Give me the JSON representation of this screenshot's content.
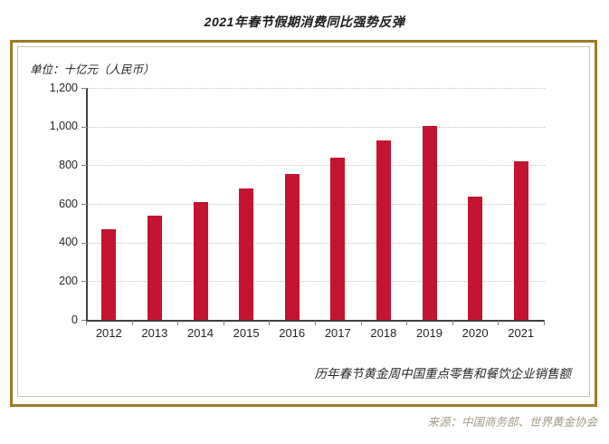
{
  "page": {
    "title": "2021年春节假期消费同比强势反弹",
    "unit_label": "单位：十亿元（人民币）",
    "caption": "历年春节黄金周中国重点零售和餐饮企业销售额",
    "source": "来源：中国商务部、世界黄金协会"
  },
  "colors": {
    "bar": "#c31430",
    "frame_gold": "#9c7b2a",
    "frame_inner": "#ccc3ad",
    "gridline": "#c2c2c2",
    "axis": "#3f3f3f",
    "source_text": "#a39a88"
  },
  "chart_data": {
    "type": "bar",
    "title": "2021年春节假期消费同比强势反弹",
    "subtitle": "历年春节黄金周中国重点零售和餐饮企业销售额",
    "ylabel": "单位：十亿元（人民币）",
    "xlabel": "",
    "categories": [
      "2012",
      "2013",
      "2014",
      "2015",
      "2016",
      "2017",
      "2018",
      "2019",
      "2020",
      "2021"
    ],
    "values": [
      470,
      539,
      611,
      678,
      754,
      840,
      926,
      1005,
      636,
      821
    ],
    "ylim": [
      0,
      1200
    ],
    "ytick_step": 200,
    "ytick_labels": [
      "0",
      "200",
      "400",
      "600",
      "800",
      "1,000",
      "1,200"
    ],
    "grid": "horizontal-dotted",
    "legend": "none",
    "bar_color": "#c31430",
    "source": "来源：中国商务部、世界黄金协会"
  }
}
